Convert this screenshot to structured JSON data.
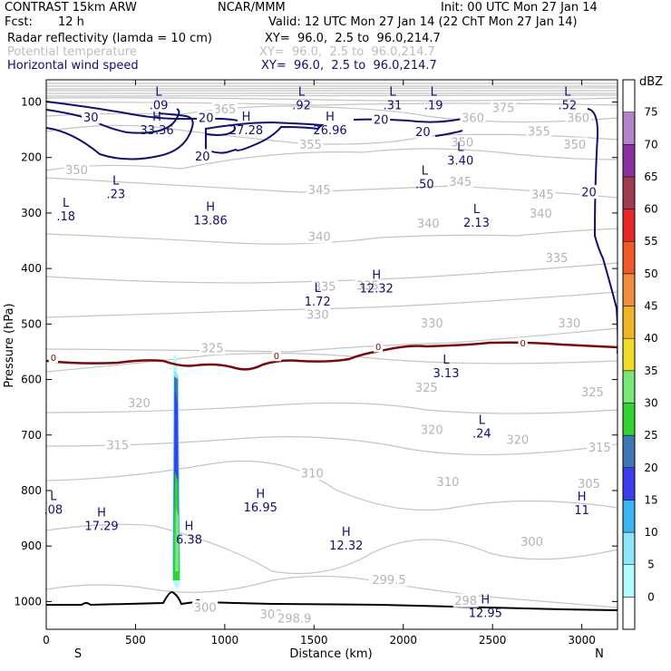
{
  "header": {
    "model": "CONTRAST 15km ARW",
    "center": "NCAR/MMM",
    "init": "Init: 00 UTC Mon 27 Jan 14",
    "fcst_label": "Fcst:",
    "fcst_value": "12 h",
    "valid": "Valid: 12 UTC Mon 27 Jan 14 (22 ChT Mon 27 Jan 14)",
    "fields": [
      {
        "name": "Radar reflectivity (lamda = 10 cm)",
        "xy": "XY=  96.0,  2.5 to  96.0,214.7"
      },
      {
        "name": "Potential temperature",
        "xy": "XY=  96.0,  2.5 to  96.0,214.7"
      },
      {
        "name": "Horizontal wind speed",
        "xy": "XY=  96.0,  2.5 to  96.0,214.7"
      }
    ]
  },
  "chart_data": {
    "type": "contour-cross-section",
    "xlabel": "Distance (km)",
    "ylabel": "Pressure (hPa)",
    "x_ticks": [
      0,
      500,
      1000,
      1500,
      2000,
      2500,
      3000
    ],
    "y_ticks": [
      100,
      200,
      300,
      400,
      500,
      600,
      700,
      800,
      900,
      1000
    ],
    "xlim": [
      0,
      3200
    ],
    "ylim": [
      1050,
      60
    ],
    "x_ends": {
      "left": "S",
      "right": "N"
    },
    "colorbar": {
      "unit": "dBZ",
      "levels": [
        0,
        5,
        10,
        15,
        20,
        25,
        30,
        35,
        40,
        45,
        50,
        55,
        60,
        65,
        70,
        75
      ],
      "colors": [
        "#ffffff",
        "#b4fcfc",
        "#8ce8f8",
        "#3cb4f0",
        "#3c3cf0",
        "#3c78b4",
        "#32d232",
        "#78e678",
        "#f0dc28",
        "#f0b428",
        "#f08c3c",
        "#f05a28",
        "#e62828",
        "#a03c50",
        "#8c32a0",
        "#b482c8",
        "#ffffff"
      ]
    },
    "theta_labels": [
      {
        "v": "375",
        "x": 2560,
        "p": 110
      },
      {
        "v": "365",
        "x": 1000,
        "p": 112
      },
      {
        "v": "360",
        "x": 2390,
        "p": 128
      },
      {
        "v": "360",
        "x": 2980,
        "p": 128
      },
      {
        "v": "355",
        "x": 2760,
        "p": 152
      },
      {
        "v": "355",
        "x": 1480,
        "p": 176
      },
      {
        "v": "350",
        "x": 2330,
        "p": 172
      },
      {
        "v": "350",
        "x": 2960,
        "p": 176
      },
      {
        "v": "350",
        "x": 170,
        "p": 222
      },
      {
        "v": "345",
        "x": 1530,
        "p": 258
      },
      {
        "v": "345",
        "x": 2320,
        "p": 243
      },
      {
        "v": "345",
        "x": 2780,
        "p": 266
      },
      {
        "v": "340",
        "x": 1530,
        "p": 342
      },
      {
        "v": "340",
        "x": 2140,
        "p": 318
      },
      {
        "v": "340",
        "x": 2770,
        "p": 300
      },
      {
        "v": "335",
        "x": 1560,
        "p": 432
      },
      {
        "v": "335",
        "x": 1800,
        "p": 430
      },
      {
        "v": "335",
        "x": 2860,
        "p": 380
      },
      {
        "v": "330",
        "x": 1520,
        "p": 482
      },
      {
        "v": "330",
        "x": 2160,
        "p": 498
      },
      {
        "v": "330",
        "x": 2930,
        "p": 498
      },
      {
        "v": "325",
        "x": 930,
        "p": 543
      },
      {
        "v": "325",
        "x": 2130,
        "p": 614
      },
      {
        "v": "325",
        "x": 3060,
        "p": 622
      },
      {
        "v": "320",
        "x": 520,
        "p": 642
      },
      {
        "v": "320",
        "x": 2160,
        "p": 690
      },
      {
        "v": "320",
        "x": 2640,
        "p": 708
      },
      {
        "v": "315",
        "x": 400,
        "p": 718
      },
      {
        "v": "315",
        "x": 3100,
        "p": 722
      },
      {
        "v": "310",
        "x": 1490,
        "p": 768
      },
      {
        "v": "310",
        "x": 2250,
        "p": 784
      },
      {
        "v": "305",
        "x": 3040,
        "p": 787
      },
      {
        "v": "300",
        "x": 2720,
        "p": 892
      },
      {
        "v": "300",
        "x": 890,
        "p": 1010
      },
      {
        "v": "300",
        "x": 1260,
        "p": 1022
      },
      {
        "v": "299.5",
        "x": 1920,
        "p": 960
      },
      {
        "v": "298",
        "x": 2350,
        "p": 998
      },
      {
        "v": "298.9",
        "x": 1390,
        "p": 1030
      }
    ],
    "wind_labels": [
      {
        "v": "30",
        "x": 250,
        "p": 127
      },
      {
        "v": "20",
        "x": 895,
        "p": 128
      },
      {
        "v": "20",
        "x": 1875,
        "p": 131
      },
      {
        "v": "20",
        "x": 2110,
        "p": 153
      },
      {
        "v": "20",
        "x": 875,
        "p": 197
      },
      {
        "v": "20",
        "x": 3040,
        "p": 262
      }
    ],
    "extrema": [
      {
        "t": "L",
        "v": ".09",
        "x": 630,
        "p": 90
      },
      {
        "t": "L",
        "v": ".92",
        "x": 1430,
        "p": 90
      },
      {
        "t": "L",
        "v": ".31",
        "x": 1940,
        "p": 90
      },
      {
        "t": "L",
        "v": ".19",
        "x": 2170,
        "p": 90
      },
      {
        "t": "L",
        "v": ".52",
        "x": 2920,
        "p": 90
      },
      {
        "t": "H",
        "v": "33.36",
        "x": 620,
        "p": 135
      },
      {
        "t": "H",
        "v": "27.28",
        "x": 1120,
        "p": 135
      },
      {
        "t": "H",
        "v": "26.96",
        "x": 1590,
        "p": 135
      },
      {
        "t": "L",
        "v": "3.40",
        "x": 2320,
        "p": 190
      },
      {
        "t": "L",
        "v": ".23",
        "x": 390,
        "p": 250
      },
      {
        "t": "L",
        "v": ".18",
        "x": 110,
        "p": 290
      },
      {
        "t": "L",
        "v": ".50",
        "x": 2120,
        "p": 232
      },
      {
        "t": "H",
        "v": "13.86",
        "x": 920,
        "p": 298
      },
      {
        "t": "L",
        "v": "2.13",
        "x": 2410,
        "p": 302
      },
      {
        "t": "H",
        "v": "12.32",
        "x": 1850,
        "p": 420
      },
      {
        "t": "L",
        "v": "1.72",
        "x": 1520,
        "p": 444
      },
      {
        "t": "L",
        "v": "3.13",
        "x": 2240,
        "p": 573
      },
      {
        "t": "L",
        "v": ".24",
        "x": 2440,
        "p": 682
      },
      {
        "t": "L",
        "v": ".08",
        "x": 40,
        "p": 819
      },
      {
        "t": "H",
        "v": "17.29",
        "x": 310,
        "p": 848
      },
      {
        "t": "H",
        "v": "16.95",
        "x": 1200,
        "p": 815
      },
      {
        "t": "H",
        "v": "11",
        "x": 3000,
        "p": 820
      },
      {
        "t": "H",
        "v": "6.38",
        "x": 800,
        "p": 873
      },
      {
        "t": "H",
        "v": "12.32",
        "x": 1680,
        "p": 883
      },
      {
        "t": "H",
        "v": "12.95",
        "x": 2460,
        "p": 1005
      }
    ],
    "zero_labels": [
      {
        "v": "0",
        "x": 40,
        "p": 560
      },
      {
        "v": "0",
        "x": 1290,
        "p": 557
      },
      {
        "v": "0",
        "x": 1860,
        "p": 541
      },
      {
        "v": "0",
        "x": 2670,
        "p": 534
      }
    ]
  }
}
